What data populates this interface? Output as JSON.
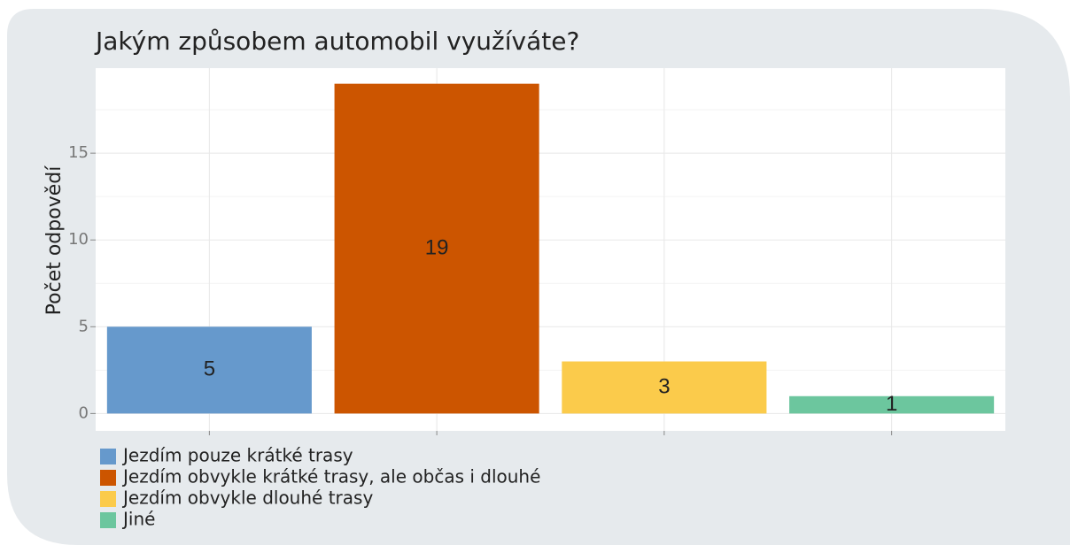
{
  "chart_data": {
    "type": "bar",
    "title": "Jakým způsobem automobil využíváte?",
    "y_label": "Počet odpovědí",
    "categories": [
      "Jezdím pouze krátké trasy",
      "Jezdím obvykle krátké trasy, ale občas i dlouhé",
      "Jezdím obvykle dlouhé trasy",
      "Jiné"
    ],
    "values": [
      5,
      19,
      3,
      1
    ],
    "colors": [
      "#6699cc",
      "#cc5500",
      "#fbcb4b",
      "#6cc69e"
    ],
    "ylim": [
      -1,
      19.9
    ],
    "yticks": [
      0,
      5,
      10,
      15
    ],
    "grid": true
  }
}
